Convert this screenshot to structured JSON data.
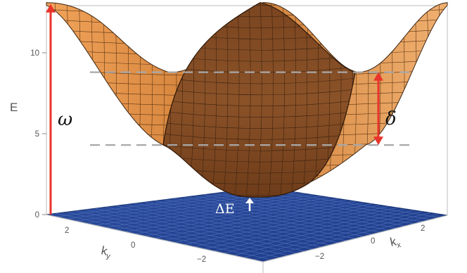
{
  "chart_data": {
    "type": "surface3d",
    "title": "",
    "zlabel": "E",
    "xlabel": "k",
    "xlabel_sub": "x",
    "ylabel": "k",
    "ylabel_sub": "y",
    "zlim": [
      0,
      13
    ],
    "x_range": [
      -3.14,
      3.14
    ],
    "y_range": [
      -3.14,
      3.14
    ],
    "z_ticks": [
      "0",
      "5",
      "10"
    ],
    "x_ticks": [
      "2",
      "0",
      "−2"
    ],
    "y_ticks": [
      "2",
      "0",
      "−2"
    ],
    "series": [
      {
        "kind": "upper band surface",
        "color": "#d07a2c",
        "minimum_E": 1.1,
        "maximum_E": 13.1,
        "saddle_E": 4.3,
        "ridge_crossing_E": 8.8
      },
      {
        "kind": "flat band plane",
        "color": "#1f3e8f",
        "E": 0
      }
    ],
    "reference_lines": [
      {
        "E": 4.3,
        "style": "dashed",
        "color": "#a8a8a8"
      },
      {
        "E": 8.8,
        "style": "dashed",
        "color": "#a8a8a8"
      }
    ],
    "annotations": {
      "omega": "ω",
      "delta": "δ",
      "delta_e": "ΔE",
      "arrow_color": "#e8352b"
    },
    "grid": true
  }
}
